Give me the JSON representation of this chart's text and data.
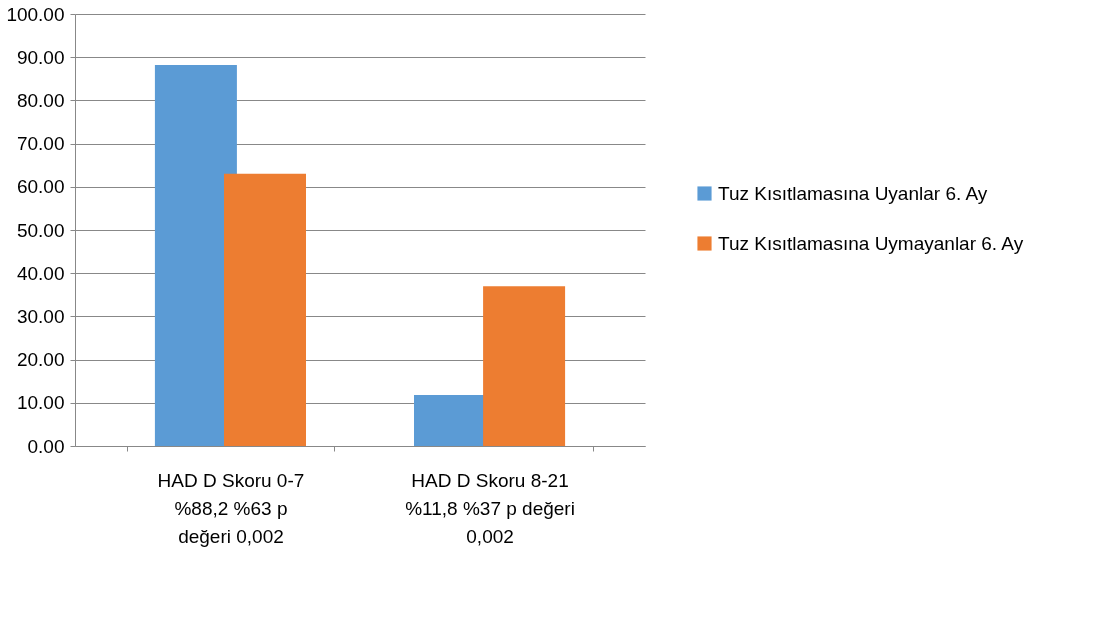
{
  "chart_data": {
    "type": "bar",
    "categories": [
      "HAD D Skoru 0-7\n%88,2          %63        p\ndeğeri 0,002",
      "HAD D Skoru 8-21\n%11,8     %37 p değeri\n0,002"
    ],
    "series": [
      {
        "name": "Tuz Kısıtlamasına Uyanlar 6. Ay",
        "color": "#5b9bd5",
        "values": [
          88.2,
          11.8
        ]
      },
      {
        "name": "Tuz Kısıtlamasına Uymayanlar 6. Ay",
        "color": "#ed7d31",
        "values": [
          63,
          37
        ]
      }
    ],
    "ylim": [
      0,
      100
    ],
    "yticks": [
      {
        "value": 0,
        "label": "0.00"
      },
      {
        "value": 10,
        "label": "10.00"
      },
      {
        "value": 20,
        "label": "20.00"
      },
      {
        "value": 30,
        "label": "30.00"
      },
      {
        "value": 40,
        "label": "40.00"
      },
      {
        "value": 50,
        "label": "50.00"
      },
      {
        "value": 60,
        "label": "60.00"
      },
      {
        "value": 70,
        "label": "70.00"
      },
      {
        "value": 80,
        "label": "80.00"
      },
      {
        "value": 90,
        "label": "90.00"
      },
      {
        "value": 100,
        "label": "100.00"
      }
    ],
    "grid": "y",
    "legend": "right"
  }
}
